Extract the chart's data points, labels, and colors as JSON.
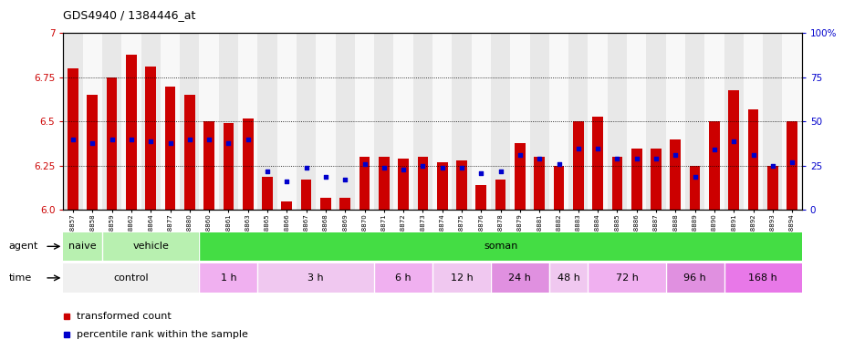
{
  "title": "GDS4940 / 1384446_at",
  "samples": [
    "GSM338857",
    "GSM338858",
    "GSM338859",
    "GSM338862",
    "GSM338864",
    "GSM338877",
    "GSM338880",
    "GSM338860",
    "GSM338861",
    "GSM338863",
    "GSM338865",
    "GSM338866",
    "GSM338867",
    "GSM338868",
    "GSM338869",
    "GSM338870",
    "GSM338871",
    "GSM338872",
    "GSM338873",
    "GSM338874",
    "GSM338875",
    "GSM338876",
    "GSM338878",
    "GSM338879",
    "GSM338881",
    "GSM338882",
    "GSM338883",
    "GSM338884",
    "GSM338885",
    "GSM338886",
    "GSM338887",
    "GSM338888",
    "GSM338889",
    "GSM338890",
    "GSM338891",
    "GSM338892",
    "GSM338893",
    "GSM338894"
  ],
  "bar_values": [
    6.8,
    6.65,
    6.75,
    6.88,
    6.81,
    6.7,
    6.65,
    6.5,
    6.49,
    6.52,
    6.19,
    6.05,
    6.17,
    6.07,
    6.07,
    6.3,
    6.3,
    6.29,
    6.3,
    6.27,
    6.28,
    6.14,
    6.17,
    6.38,
    6.3,
    6.25,
    6.5,
    6.53,
    6.3,
    6.35,
    6.35,
    6.4,
    6.25,
    6.5,
    6.68,
    6.57,
    6.25,
    6.5
  ],
  "percentile_values": [
    40,
    38,
    40,
    40,
    39,
    38,
    40,
    40,
    38,
    40,
    22,
    16,
    24,
    19,
    17,
    26,
    24,
    23,
    25,
    24,
    24,
    21,
    22,
    31,
    29,
    26,
    35,
    35,
    29,
    29,
    29,
    31,
    19,
    34,
    39,
    31,
    25,
    27
  ],
  "ylim_left": [
    6.0,
    7.0
  ],
  "ylim_right": [
    0,
    100
  ],
  "yticks_left": [
    6.0,
    6.25,
    6.5,
    6.75,
    7.0
  ],
  "yticks_right": [
    0,
    25,
    50,
    75,
    100
  ],
  "bar_color": "#cc0000",
  "dot_color": "#0000cc",
  "agent_groups": [
    {
      "label": "naive",
      "start": 0,
      "end": 2,
      "color": "#90ee90"
    },
    {
      "label": "vehicle",
      "start": 2,
      "end": 7,
      "color": "#90ee90"
    },
    {
      "label": "soman",
      "start": 7,
      "end": 38,
      "color": "#44dd44"
    }
  ],
  "time_groups": [
    {
      "label": "control",
      "start": 0,
      "end": 7,
      "color": "#f0f0f0"
    },
    {
      "label": "1 h",
      "start": 7,
      "end": 10,
      "color": "#f0b0f0"
    },
    {
      "label": "3 h",
      "start": 10,
      "end": 16,
      "color": "#f0c8f0"
    },
    {
      "label": "6 h",
      "start": 16,
      "end": 19,
      "color": "#f0b0f0"
    },
    {
      "label": "12 h",
      "start": 19,
      "end": 22,
      "color": "#f0c8f0"
    },
    {
      "label": "24 h",
      "start": 22,
      "end": 25,
      "color": "#e090e0"
    },
    {
      "label": "48 h",
      "start": 25,
      "end": 27,
      "color": "#f0c8f0"
    },
    {
      "label": "72 h",
      "start": 27,
      "end": 31,
      "color": "#f0b0f0"
    },
    {
      "label": "96 h",
      "start": 31,
      "end": 34,
      "color": "#e090e0"
    },
    {
      "label": "168 h",
      "start": 34,
      "end": 38,
      "color": "#e878e8"
    }
  ]
}
